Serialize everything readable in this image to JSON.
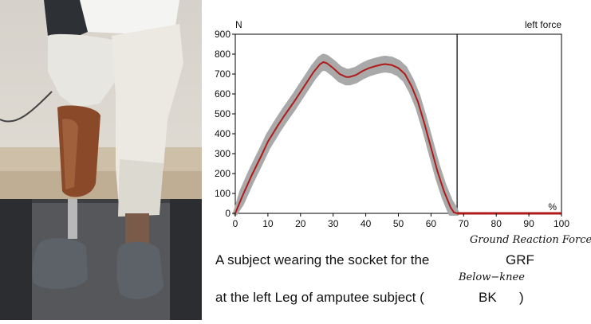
{
  "photo": {
    "description_icon": "prosthetic-leg-on-treadmill-photo"
  },
  "chart_data": {
    "type": "line",
    "title": "",
    "top_left_unit": "N",
    "top_right_label": "left force",
    "x_unit_label": "%",
    "xlim": [
      0,
      100
    ],
    "ylim": [
      0,
      900
    ],
    "x_ticks": [
      "0",
      "10",
      "20",
      "30",
      "40",
      "50",
      "60",
      "70",
      "80",
      "90",
      "100"
    ],
    "y_ticks": [
      "0",
      "100",
      "200",
      "300",
      "400",
      "500",
      "600",
      "700",
      "800",
      "900"
    ],
    "stance_end_marker_x": 68,
    "grid": false,
    "series": [
      {
        "style": "mean-red-line-with-gray-band",
        "x": [
          0,
          2,
          5,
          8,
          10,
          13,
          15,
          18,
          20,
          22,
          24,
          26,
          27,
          28,
          30,
          32,
          34,
          35,
          37,
          39,
          41,
          43,
          45,
          46,
          48,
          50,
          52,
          54,
          56,
          58,
          60,
          62,
          64,
          66,
          67,
          68,
          70,
          80,
          90,
          100
        ],
        "y": [
          0,
          80,
          190,
          290,
          360,
          440,
          490,
          560,
          610,
          660,
          710,
          750,
          760,
          755,
          730,
          700,
          685,
          685,
          695,
          715,
          730,
          740,
          748,
          750,
          745,
          730,
          700,
          640,
          560,
          450,
          330,
          210,
          110,
          30,
          5,
          0,
          0,
          0,
          0,
          0
        ],
        "band_halfwidth": 30
      }
    ],
    "colors": {
      "mean_line": "#b01a1a",
      "band": "#a9a9a9",
      "axis": "#000000",
      "flat_line": "#b01a1a"
    }
  },
  "caption": {
    "line1_text": "A subject wearing the socket for the",
    "line1_abbrev": "GRF",
    "line1_full": "Ground Reaction Force",
    "line2_text": "at the left Leg of amputee subject (",
    "line2_abbrev": "BK",
    "line2_full": "Below−knee",
    "line2_close": ")"
  }
}
